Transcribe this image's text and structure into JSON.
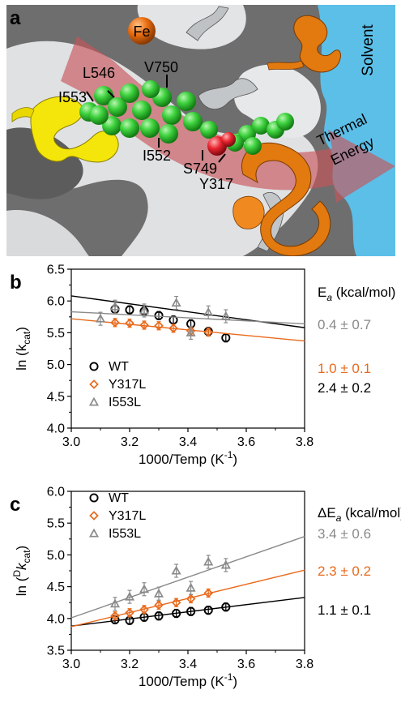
{
  "panel_a": {
    "letter": "a",
    "labels": {
      "fe": "Fe",
      "solvent": "Solvent",
      "thermal": "Thermal",
      "energy": "Energy",
      "l546": "L546",
      "v750": "V750",
      "i553": "I553",
      "i552": "I552",
      "s749": "S749",
      "y317": "Y317"
    },
    "colors": {
      "background": "#6e6e6e",
      "solvent": "#5bbfe8",
      "surface": "#e2e4e6",
      "helix_yellow": "#f4e60a",
      "helix_orange": "#e27a10",
      "spheres": "#3ed23e",
      "oxygen": "#e8232e",
      "fe": "#e96d10",
      "arrow": "#c7545b"
    }
  },
  "chart_data": [
    {
      "type": "scatter",
      "panel_letter": "b",
      "xlabel": "1000/Temp (K",
      "xlabel_sup": "-1",
      "xlabel_tail": ")",
      "ylabel": "ln (k",
      "ylabel_sub": "cat",
      "ylabel_tail": ")",
      "xlim": [
        3.0,
        3.8
      ],
      "ylim": [
        4.0,
        6.5
      ],
      "xticks": [
        "3.0",
        "3.2",
        "3.4",
        "3.6",
        "3.8"
      ],
      "yticks": [
        "4.0",
        "4.5",
        "5.0",
        "5.5",
        "6.0",
        "6.5"
      ],
      "annotation_header": "E",
      "annotation_header_sub": "a",
      "annotation_header_tail": " (kcal/mol)",
      "legend_position": "lower-left",
      "series": [
        {
          "name": "WT",
          "marker": "circle",
          "color": "#000000",
          "x": [
            3.15,
            3.2,
            3.25,
            3.3,
            3.35,
            3.41,
            3.47,
            3.53
          ],
          "y": [
            5.87,
            5.86,
            5.84,
            5.77,
            5.7,
            5.64,
            5.52,
            5.42
          ],
          "fit": [
            [
              3.0,
              6.08
            ],
            [
              3.8,
              5.58
            ]
          ],
          "annotation": "2.4 ± 0.2"
        },
        {
          "name": "Y317L",
          "marker": "diamond",
          "color": "#e86a1c",
          "x": [
            3.15,
            3.2,
            3.25,
            3.3,
            3.35,
            3.41,
            3.47
          ],
          "y": [
            5.66,
            5.65,
            5.62,
            5.61,
            5.57,
            5.53,
            5.51
          ],
          "fit": [
            [
              3.0,
              5.72
            ],
            [
              3.8,
              5.37
            ]
          ],
          "annotation": "1.0 ± 0.1"
        },
        {
          "name": "I553L",
          "marker": "triangle",
          "color": "#8a8a8a",
          "x": [
            3.1,
            3.15,
            3.25,
            3.36,
            3.41,
            3.47,
            3.53
          ],
          "y": [
            5.72,
            5.91,
            5.85,
            5.97,
            5.5,
            5.82,
            5.76
          ],
          "fit": [
            [
              3.0,
              5.83
            ],
            [
              3.8,
              5.64
            ]
          ],
          "annotation": "0.4 ± 0.7"
        }
      ]
    },
    {
      "type": "scatter",
      "panel_letter": "c",
      "xlabel": "1000/Temp (K",
      "xlabel_sup": "-1",
      "xlabel_tail": ")",
      "ylabel": "ln (",
      "ylabel_sup": "D",
      "ylabel_mid": "k",
      "ylabel_sub": "cat",
      "ylabel_tail": ")",
      "xlim": [
        3.0,
        3.8
      ],
      "ylim": [
        3.5,
        6.0
      ],
      "xticks": [
        "3.0",
        "3.2",
        "3.4",
        "3.6",
        "3.8"
      ],
      "yticks": [
        "3.5",
        "4.0",
        "4.5",
        "5.0",
        "5.5",
        "6.0"
      ],
      "annotation_header": "ΔE",
      "annotation_header_sub": "a",
      "annotation_header_tail": " (kcal/mol)",
      "legend_position": "upper-left",
      "series": [
        {
          "name": "WT",
          "marker": "circle",
          "color": "#000000",
          "x": [
            3.15,
            3.2,
            3.25,
            3.3,
            3.36,
            3.41,
            3.47,
            3.53
          ],
          "y": [
            3.98,
            3.97,
            4.02,
            4.04,
            4.08,
            4.11,
            4.13,
            4.18
          ],
          "fit": [
            [
              3.0,
              3.88
            ],
            [
              3.8,
              4.33
            ]
          ],
          "annotation": "1.1 ± 0.1"
        },
        {
          "name": "Y317L",
          "marker": "diamond",
          "color": "#e86a1c",
          "x": [
            3.15,
            3.2,
            3.25,
            3.3,
            3.36,
            3.41,
            3.47
          ],
          "y": [
            4.04,
            4.09,
            4.14,
            4.21,
            4.25,
            4.31,
            4.4
          ],
          "fit": [
            [
              3.0,
              3.87
            ],
            [
              3.8,
              4.76
            ]
          ],
          "annotation": "2.3 ± 0.2"
        },
        {
          "name": "I553L",
          "marker": "triangle",
          "color": "#8a8a8a",
          "x": [
            3.15,
            3.2,
            3.25,
            3.3,
            3.36,
            3.41,
            3.47,
            3.53
          ],
          "y": [
            4.23,
            4.34,
            4.46,
            4.39,
            4.75,
            4.48,
            4.89,
            4.84
          ],
          "fit": [
            [
              3.0,
              4.01
            ],
            [
              3.8,
              5.29
            ]
          ],
          "annotation": "3.4 ± 0.6"
        }
      ]
    }
  ]
}
